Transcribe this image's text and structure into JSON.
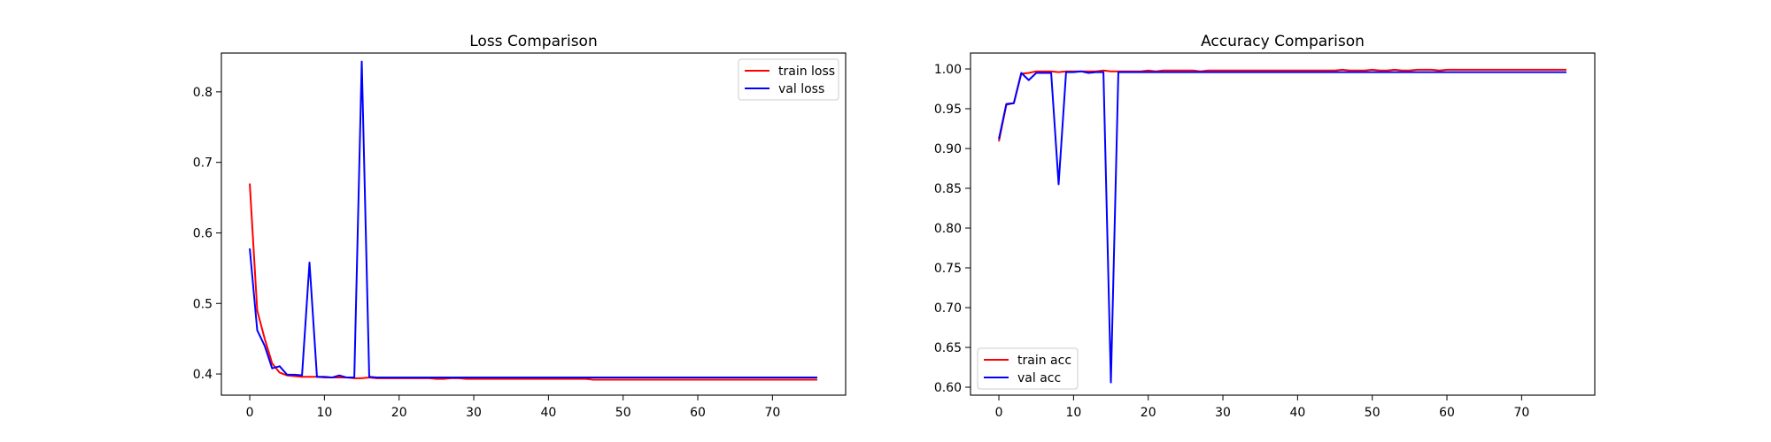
{
  "chart_data": [
    {
      "type": "line",
      "title": "Loss Comparison",
      "xlabel": "",
      "ylabel": "",
      "xlim": [
        -3.8,
        79.8
      ],
      "ylim": [
        0.37,
        0.855
      ],
      "xticks": [
        0,
        10,
        20,
        30,
        40,
        50,
        60,
        70
      ],
      "yticks": [
        0.4,
        0.5,
        0.6,
        0.7,
        0.8
      ],
      "ytick_decimals": 1,
      "grid": false,
      "legend_position": "top-right",
      "series": [
        {
          "name": "train loss",
          "color": "#ff0000",
          "x": [
            0,
            1,
            2,
            3,
            4,
            5,
            6,
            7,
            8,
            9,
            10,
            11,
            12,
            13,
            14,
            15,
            16,
            17,
            18,
            19,
            20,
            21,
            22,
            23,
            24,
            25,
            26,
            27,
            28,
            29,
            30,
            31,
            32,
            33,
            34,
            35,
            36,
            37,
            38,
            39,
            40,
            41,
            42,
            43,
            44,
            45,
            46,
            47,
            48,
            49,
            50,
            51,
            52,
            53,
            54,
            55,
            56,
            57,
            58,
            59,
            60,
            61,
            62,
            63,
            64,
            65,
            66,
            67,
            68,
            69,
            70,
            71,
            72,
            73,
            74,
            75,
            76
          ],
          "y": [
            0.67,
            0.49,
            0.45,
            0.415,
            0.402,
            0.398,
            0.397,
            0.396,
            0.396,
            0.396,
            0.395,
            0.395,
            0.395,
            0.395,
            0.394,
            0.394,
            0.395,
            0.394,
            0.394,
            0.394,
            0.394,
            0.394,
            0.394,
            0.394,
            0.394,
            0.393,
            0.393,
            0.394,
            0.394,
            0.393,
            0.393,
            0.393,
            0.393,
            0.393,
            0.393,
            0.393,
            0.393,
            0.393,
            0.393,
            0.393,
            0.393,
            0.393,
            0.393,
            0.393,
            0.393,
            0.393,
            0.392,
            0.392,
            0.392,
            0.392,
            0.392,
            0.392,
            0.392,
            0.392,
            0.392,
            0.392,
            0.392,
            0.392,
            0.392,
            0.392,
            0.392,
            0.392,
            0.392,
            0.392,
            0.392,
            0.392,
            0.392,
            0.392,
            0.392,
            0.392,
            0.392,
            0.392,
            0.392,
            0.392,
            0.392,
            0.392,
            0.392
          ]
        },
        {
          "name": "val loss",
          "color": "#0000ff",
          "x": [
            0,
            1,
            2,
            3,
            4,
            5,
            6,
            7,
            8,
            9,
            10,
            11,
            12,
            13,
            14,
            15,
            16,
            17,
            18,
            19,
            20,
            21,
            22,
            23,
            24,
            25,
            26,
            27,
            28,
            29,
            30,
            31,
            32,
            33,
            34,
            35,
            36,
            37,
            38,
            39,
            40,
            41,
            42,
            43,
            44,
            45,
            46,
            47,
            48,
            49,
            50,
            51,
            52,
            53,
            54,
            55,
            56,
            57,
            58,
            59,
            60,
            61,
            62,
            63,
            64,
            65,
            66,
            67,
            68,
            69,
            70,
            71,
            72,
            73,
            74,
            75,
            76
          ],
          "y": [
            0.578,
            0.462,
            0.44,
            0.408,
            0.411,
            0.399,
            0.399,
            0.398,
            0.558,
            0.396,
            0.396,
            0.395,
            0.398,
            0.395,
            0.395,
            0.843,
            0.396,
            0.395,
            0.395,
            0.395,
            0.395,
            0.395,
            0.395,
            0.395,
            0.395,
            0.395,
            0.395,
            0.395,
            0.395,
            0.395,
            0.395,
            0.395,
            0.395,
            0.395,
            0.395,
            0.395,
            0.395,
            0.395,
            0.395,
            0.395,
            0.395,
            0.395,
            0.395,
            0.395,
            0.395,
            0.395,
            0.395,
            0.395,
            0.395,
            0.395,
            0.395,
            0.395,
            0.395,
            0.395,
            0.395,
            0.395,
            0.395,
            0.395,
            0.395,
            0.395,
            0.395,
            0.395,
            0.395,
            0.395,
            0.395,
            0.395,
            0.395,
            0.395,
            0.395,
            0.395,
            0.395,
            0.395,
            0.395,
            0.395,
            0.395,
            0.395,
            0.395
          ]
        }
      ]
    },
    {
      "type": "line",
      "title": "Accuracy Comparison",
      "xlabel": "",
      "ylabel": "",
      "xlim": [
        -3.8,
        79.8
      ],
      "ylim": [
        0.59,
        1.02
      ],
      "xticks": [
        0,
        10,
        20,
        30,
        40,
        50,
        60,
        70
      ],
      "yticks": [
        0.6,
        0.65,
        0.7,
        0.75,
        0.8,
        0.85,
        0.9,
        0.95,
        1.0
      ],
      "ytick_decimals": 2,
      "grid": false,
      "legend_position": "bottom-left",
      "series": [
        {
          "name": "train acc",
          "color": "#ff0000",
          "x": [
            0,
            1,
            2,
            3,
            4,
            5,
            6,
            7,
            8,
            9,
            10,
            11,
            12,
            13,
            14,
            15,
            16,
            17,
            18,
            19,
            20,
            21,
            22,
            23,
            24,
            25,
            26,
            27,
            28,
            29,
            30,
            31,
            32,
            33,
            34,
            35,
            36,
            37,
            38,
            39,
            40,
            41,
            42,
            43,
            44,
            45,
            46,
            47,
            48,
            49,
            50,
            51,
            52,
            53,
            54,
            55,
            56,
            57,
            58,
            59,
            60,
            61,
            62,
            63,
            64,
            65,
            66,
            67,
            68,
            69,
            70,
            71,
            72,
            73,
            74,
            75,
            76
          ],
          "y": [
            0.909,
            0.955,
            0.957,
            0.994,
            0.995,
            0.997,
            0.997,
            0.997,
            0.996,
            0.997,
            0.997,
            0.997,
            0.997,
            0.997,
            0.998,
            0.997,
            0.997,
            0.997,
            0.997,
            0.997,
            0.998,
            0.997,
            0.998,
            0.998,
            0.998,
            0.998,
            0.998,
            0.997,
            0.998,
            0.998,
            0.998,
            0.998,
            0.998,
            0.998,
            0.998,
            0.998,
            0.998,
            0.998,
            0.998,
            0.998,
            0.998,
            0.998,
            0.998,
            0.998,
            0.998,
            0.998,
            0.999,
            0.998,
            0.998,
            0.998,
            0.999,
            0.998,
            0.998,
            0.999,
            0.998,
            0.998,
            0.999,
            0.999,
            0.999,
            0.998,
            0.999,
            0.999,
            0.999,
            0.999,
            0.999,
            0.999,
            0.999,
            0.999,
            0.999,
            0.999,
            0.999,
            0.999,
            0.999,
            0.999,
            0.999,
            0.999,
            0.999
          ]
        },
        {
          "name": "val acc",
          "color": "#0000ff",
          "x": [
            0,
            1,
            2,
            3,
            4,
            5,
            6,
            7,
            8,
            9,
            10,
            11,
            12,
            13,
            14,
            15,
            16,
            17,
            18,
            19,
            20,
            21,
            22,
            23,
            24,
            25,
            26,
            27,
            28,
            29,
            30,
            31,
            32,
            33,
            34,
            35,
            36,
            37,
            38,
            39,
            40,
            41,
            42,
            43,
            44,
            45,
            46,
            47,
            48,
            49,
            50,
            51,
            52,
            53,
            54,
            55,
            56,
            57,
            58,
            59,
            60,
            61,
            62,
            63,
            64,
            65,
            66,
            67,
            68,
            69,
            70,
            71,
            72,
            73,
            74,
            75,
            76
          ],
          "y": [
            0.912,
            0.956,
            0.957,
            0.995,
            0.986,
            0.995,
            0.995,
            0.995,
            0.855,
            0.996,
            0.996,
            0.997,
            0.995,
            0.996,
            0.996,
            0.606,
            0.996,
            0.996,
            0.996,
            0.996,
            0.996,
            0.996,
            0.996,
            0.996,
            0.996,
            0.996,
            0.996,
            0.996,
            0.996,
            0.996,
            0.996,
            0.996,
            0.996,
            0.996,
            0.996,
            0.996,
            0.996,
            0.996,
            0.996,
            0.996,
            0.996,
            0.996,
            0.996,
            0.996,
            0.996,
            0.996,
            0.996,
            0.996,
            0.996,
            0.996,
            0.996,
            0.996,
            0.996,
            0.996,
            0.996,
            0.996,
            0.996,
            0.996,
            0.996,
            0.996,
            0.996,
            0.996,
            0.996,
            0.996,
            0.996,
            0.996,
            0.996,
            0.996,
            0.996,
            0.996,
            0.996,
            0.996,
            0.996,
            0.996,
            0.996,
            0.996,
            0.996
          ]
        }
      ]
    }
  ]
}
